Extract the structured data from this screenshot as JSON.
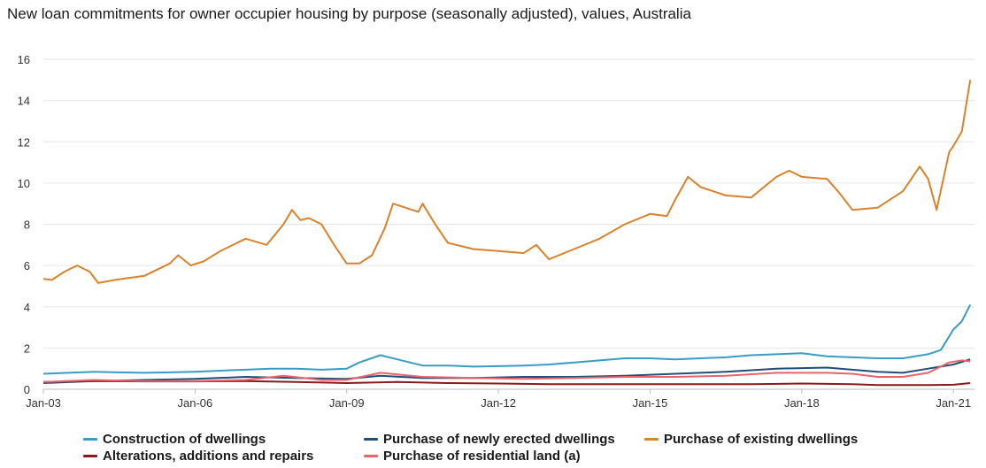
{
  "chart_data": {
    "type": "line",
    "title": "New loan commitments for owner occupier housing by purpose (seasonally adjusted), values, Australia",
    "xlabel": "",
    "ylabel": "",
    "x_tick_labels": [
      "Jan-03",
      "Jan-06",
      "Jan-09",
      "Jan-12",
      "Jan-15",
      "Jan-18",
      "Jan-21"
    ],
    "y_ticks": [
      0,
      2,
      4,
      6,
      8,
      10,
      12,
      14,
      16
    ],
    "ylim": [
      0,
      16
    ],
    "grid": "horizontal",
    "legend_position": "bottom",
    "series": [
      {
        "name": "Construction of dwellings",
        "color": "#3a9bc4",
        "points": [
          [
            "2003-01",
            0.75
          ],
          [
            "2003-07",
            0.8
          ],
          [
            "2004-01",
            0.85
          ],
          [
            "2004-07",
            0.82
          ],
          [
            "2005-01",
            0.8
          ],
          [
            "2005-07",
            0.82
          ],
          [
            "2006-01",
            0.85
          ],
          [
            "2006-07",
            0.9
          ],
          [
            "2007-01",
            0.95
          ],
          [
            "2007-07",
            1.0
          ],
          [
            "2008-01",
            1.0
          ],
          [
            "2008-07",
            0.95
          ],
          [
            "2009-01",
            1.0
          ],
          [
            "2009-04",
            1.3
          ],
          [
            "2009-09",
            1.65
          ],
          [
            "2010-01",
            1.45
          ],
          [
            "2010-07",
            1.15
          ],
          [
            "2011-01",
            1.15
          ],
          [
            "2011-07",
            1.1
          ],
          [
            "2012-01",
            1.12
          ],
          [
            "2012-07",
            1.15
          ],
          [
            "2013-01",
            1.2
          ],
          [
            "2013-07",
            1.3
          ],
          [
            "2014-01",
            1.4
          ],
          [
            "2014-07",
            1.5
          ],
          [
            "2015-01",
            1.5
          ],
          [
            "2015-07",
            1.45
          ],
          [
            "2016-01",
            1.5
          ],
          [
            "2016-07",
            1.55
          ],
          [
            "2017-01",
            1.65
          ],
          [
            "2017-07",
            1.7
          ],
          [
            "2018-01",
            1.75
          ],
          [
            "2018-07",
            1.6
          ],
          [
            "2019-01",
            1.55
          ],
          [
            "2019-07",
            1.5
          ],
          [
            "2020-01",
            1.5
          ],
          [
            "2020-07",
            1.7
          ],
          [
            "2020-10",
            1.9
          ],
          [
            "2021-01",
            2.9
          ],
          [
            "2021-03",
            3.3
          ],
          [
            "2021-05",
            4.1
          ]
        ]
      },
      {
        "name": "Purchase of newly erected dwellings",
        "color": "#1f4e79",
        "points": [
          [
            "2003-01",
            0.3
          ],
          [
            "2004-01",
            0.4
          ],
          [
            "2005-01",
            0.45
          ],
          [
            "2006-01",
            0.5
          ],
          [
            "2007-01",
            0.6
          ],
          [
            "2008-01",
            0.55
          ],
          [
            "2009-01",
            0.5
          ],
          [
            "2009-09",
            0.65
          ],
          [
            "2010-07",
            0.55
          ],
          [
            "2011-07",
            0.55
          ],
          [
            "2012-07",
            0.6
          ],
          [
            "2013-07",
            0.6
          ],
          [
            "2014-07",
            0.65
          ],
          [
            "2015-07",
            0.75
          ],
          [
            "2016-07",
            0.85
          ],
          [
            "2017-07",
            1.0
          ],
          [
            "2018-07",
            1.05
          ],
          [
            "2019-07",
            0.85
          ],
          [
            "2020-01",
            0.8
          ],
          [
            "2020-07",
            1.0
          ],
          [
            "2021-01",
            1.2
          ],
          [
            "2021-05",
            1.45
          ]
        ]
      },
      {
        "name": "Purchase of existing dwellings",
        "color": "#d9822b",
        "points": [
          [
            "2003-01",
            5.35
          ],
          [
            "2003-03",
            5.3
          ],
          [
            "2003-06",
            5.7
          ],
          [
            "2003-09",
            6.0
          ],
          [
            "2003-12",
            5.7
          ],
          [
            "2004-02",
            5.15
          ],
          [
            "2004-06",
            5.3
          ],
          [
            "2005-01",
            5.5
          ],
          [
            "2005-07",
            6.1
          ],
          [
            "2005-09",
            6.5
          ],
          [
            "2005-12",
            6.0
          ],
          [
            "2006-03",
            6.2
          ],
          [
            "2006-07",
            6.7
          ],
          [
            "2007-01",
            7.3
          ],
          [
            "2007-06",
            7.0
          ],
          [
            "2007-10",
            8.0
          ],
          [
            "2007-12",
            8.7
          ],
          [
            "2008-02",
            8.2
          ],
          [
            "2008-04",
            8.3
          ],
          [
            "2008-07",
            8.0
          ],
          [
            "2008-10",
            7.0
          ],
          [
            "2009-01",
            6.1
          ],
          [
            "2009-04",
            6.1
          ],
          [
            "2009-07",
            6.5
          ],
          [
            "2009-10",
            7.8
          ],
          [
            "2009-12",
            9.0
          ],
          [
            "2010-03",
            8.8
          ],
          [
            "2010-06",
            8.6
          ],
          [
            "2010-07",
            9.0
          ],
          [
            "2010-10",
            8.0
          ],
          [
            "2011-01",
            7.1
          ],
          [
            "2011-07",
            6.8
          ],
          [
            "2012-01",
            6.7
          ],
          [
            "2012-07",
            6.6
          ],
          [
            "2012-10",
            7.0
          ],
          [
            "2013-01",
            6.3
          ],
          [
            "2013-07",
            6.8
          ],
          [
            "2014-01",
            7.3
          ],
          [
            "2014-07",
            8.0
          ],
          [
            "2015-01",
            8.5
          ],
          [
            "2015-05",
            8.4
          ],
          [
            "2015-07",
            9.2
          ],
          [
            "2015-10",
            10.3
          ],
          [
            "2016-01",
            9.8
          ],
          [
            "2016-07",
            9.4
          ],
          [
            "2017-01",
            9.3
          ],
          [
            "2017-07",
            10.3
          ],
          [
            "2017-10",
            10.6
          ],
          [
            "2018-01",
            10.3
          ],
          [
            "2018-07",
            10.2
          ],
          [
            "2018-10",
            9.5
          ],
          [
            "2019-01",
            8.7
          ],
          [
            "2019-07",
            8.8
          ],
          [
            "2020-01",
            9.6
          ],
          [
            "2020-05",
            10.8
          ],
          [
            "2020-07",
            10.2
          ],
          [
            "2020-09",
            8.7
          ],
          [
            "2020-12",
            11.5
          ],
          [
            "2021-01",
            11.8
          ],
          [
            "2021-03",
            12.5
          ],
          [
            "2021-05",
            15.0
          ]
        ]
      },
      {
        "name": "Alterations, additions and repairs",
        "color": "#8b1a1a",
        "points": [
          [
            "2003-01",
            0.35
          ],
          [
            "2004-01",
            0.4
          ],
          [
            "2005-01",
            0.38
          ],
          [
            "2006-01",
            0.38
          ],
          [
            "2007-01",
            0.4
          ],
          [
            "2008-01",
            0.35
          ],
          [
            "2009-01",
            0.3
          ],
          [
            "2010-01",
            0.35
          ],
          [
            "2011-01",
            0.3
          ],
          [
            "2012-01",
            0.28
          ],
          [
            "2013-01",
            0.25
          ],
          [
            "2014-01",
            0.25
          ],
          [
            "2015-01",
            0.25
          ],
          [
            "2016-01",
            0.25
          ],
          [
            "2017-01",
            0.25
          ],
          [
            "2018-01",
            0.28
          ],
          [
            "2019-01",
            0.25
          ],
          [
            "2019-07",
            0.2
          ],
          [
            "2020-01",
            0.2
          ],
          [
            "2020-07",
            0.2
          ],
          [
            "2021-01",
            0.22
          ],
          [
            "2021-05",
            0.3
          ]
        ]
      },
      {
        "name": "Purchase of residential land (a)",
        "color": "#e8636a",
        "points": [
          [
            "2003-01",
            0.35
          ],
          [
            "2004-01",
            0.45
          ],
          [
            "2005-01",
            0.4
          ],
          [
            "2006-01",
            0.4
          ],
          [
            "2007-01",
            0.45
          ],
          [
            "2007-10",
            0.65
          ],
          [
            "2008-07",
            0.45
          ],
          [
            "2009-01",
            0.45
          ],
          [
            "2009-09",
            0.8
          ],
          [
            "2010-07",
            0.6
          ],
          [
            "2011-07",
            0.55
          ],
          [
            "2012-07",
            0.5
          ],
          [
            "2013-07",
            0.55
          ],
          [
            "2014-07",
            0.6
          ],
          [
            "2015-07",
            0.6
          ],
          [
            "2016-07",
            0.65
          ],
          [
            "2017-07",
            0.8
          ],
          [
            "2018-07",
            0.8
          ],
          [
            "2019-01",
            0.75
          ],
          [
            "2019-07",
            0.6
          ],
          [
            "2020-01",
            0.6
          ],
          [
            "2020-07",
            0.8
          ],
          [
            "2020-12",
            1.3
          ],
          [
            "2021-03",
            1.4
          ],
          [
            "2021-05",
            1.35
          ]
        ]
      }
    ]
  }
}
